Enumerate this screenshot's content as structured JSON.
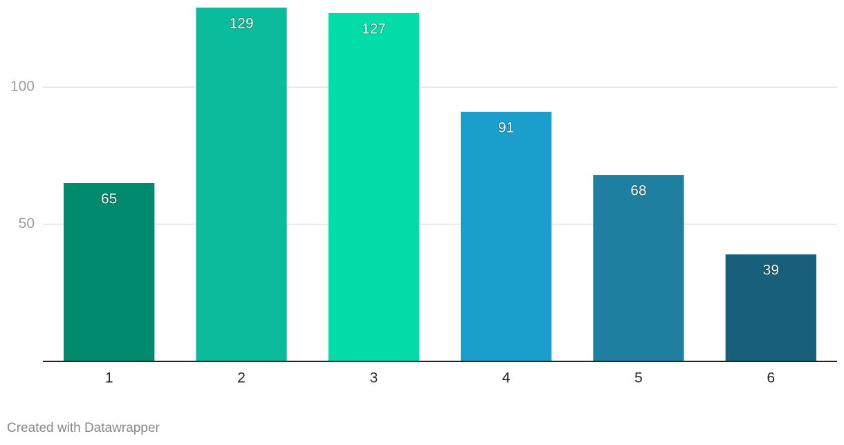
{
  "chart_data": {
    "type": "bar",
    "categories": [
      "1",
      "2",
      "3",
      "4",
      "5",
      "6"
    ],
    "values": [
      65,
      129,
      127,
      91,
      68,
      39
    ],
    "colors": [
      "#018a6e",
      "#0abb9c",
      "#01dca8",
      "#1a9fcc",
      "#1e7fa0",
      "#175f7b"
    ],
    "ylim": [
      0,
      130
    ],
    "yticks": [
      50,
      100
    ],
    "grid": true,
    "footer": "Created with Datawrapper"
  }
}
